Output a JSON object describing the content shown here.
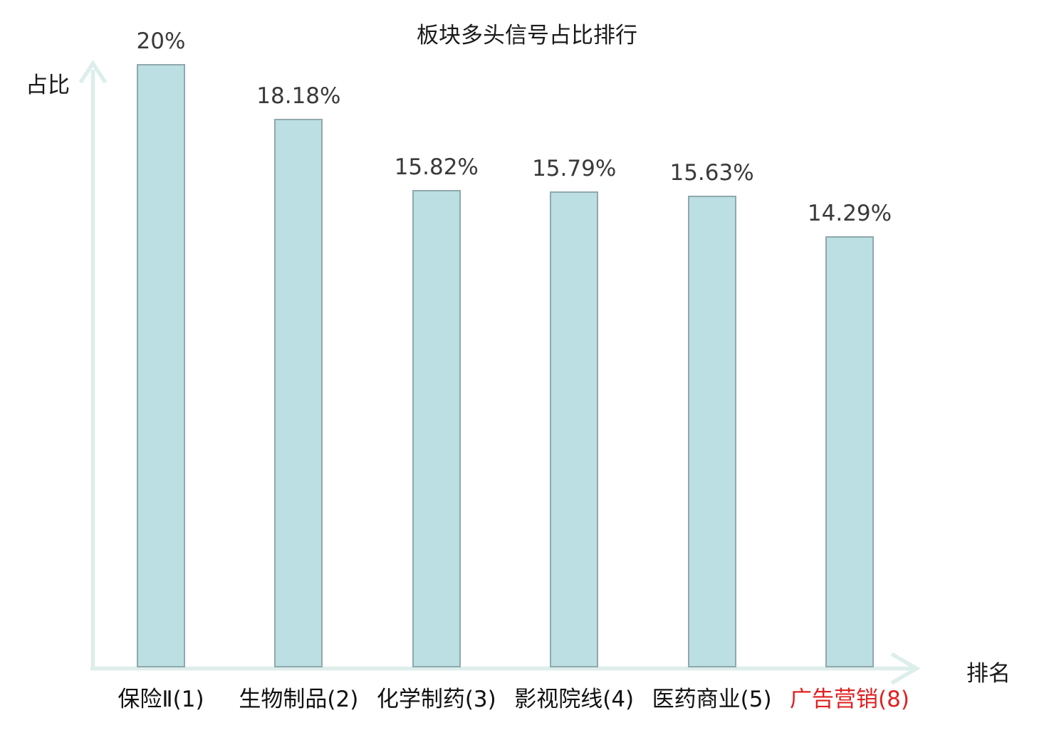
{
  "title": "板块多头信号占比排行",
  "axes": {
    "y_label": "占比",
    "x_label": "排名"
  },
  "colors": {
    "bar_fill": "#bbdfe3",
    "bar_border": "#90a8ad",
    "axis_line": "#ddeeeb",
    "value_text": "#3a3a3a",
    "category_text": "#111111",
    "highlight_text": "#e01f1f"
  },
  "chart_data": {
    "type": "bar",
    "title": "板块多头信号占比排行",
    "xlabel": "排名",
    "ylabel": "占比",
    "categories": [
      "保险Ⅱ(1)",
      "生物制品(2)",
      "化学制药(3)",
      "影视院线(4)",
      "医药商业(5)",
      "广告营销(8)"
    ],
    "values": [
      20,
      18.18,
      15.82,
      15.79,
      15.63,
      14.29
    ],
    "value_labels": [
      "20%",
      "18.18%",
      "15.82%",
      "15.79%",
      "15.63%",
      "14.29%"
    ],
    "highlight_index": 5,
    "ylim": [
      0,
      20
    ],
    "grid": false,
    "legend": "none"
  }
}
